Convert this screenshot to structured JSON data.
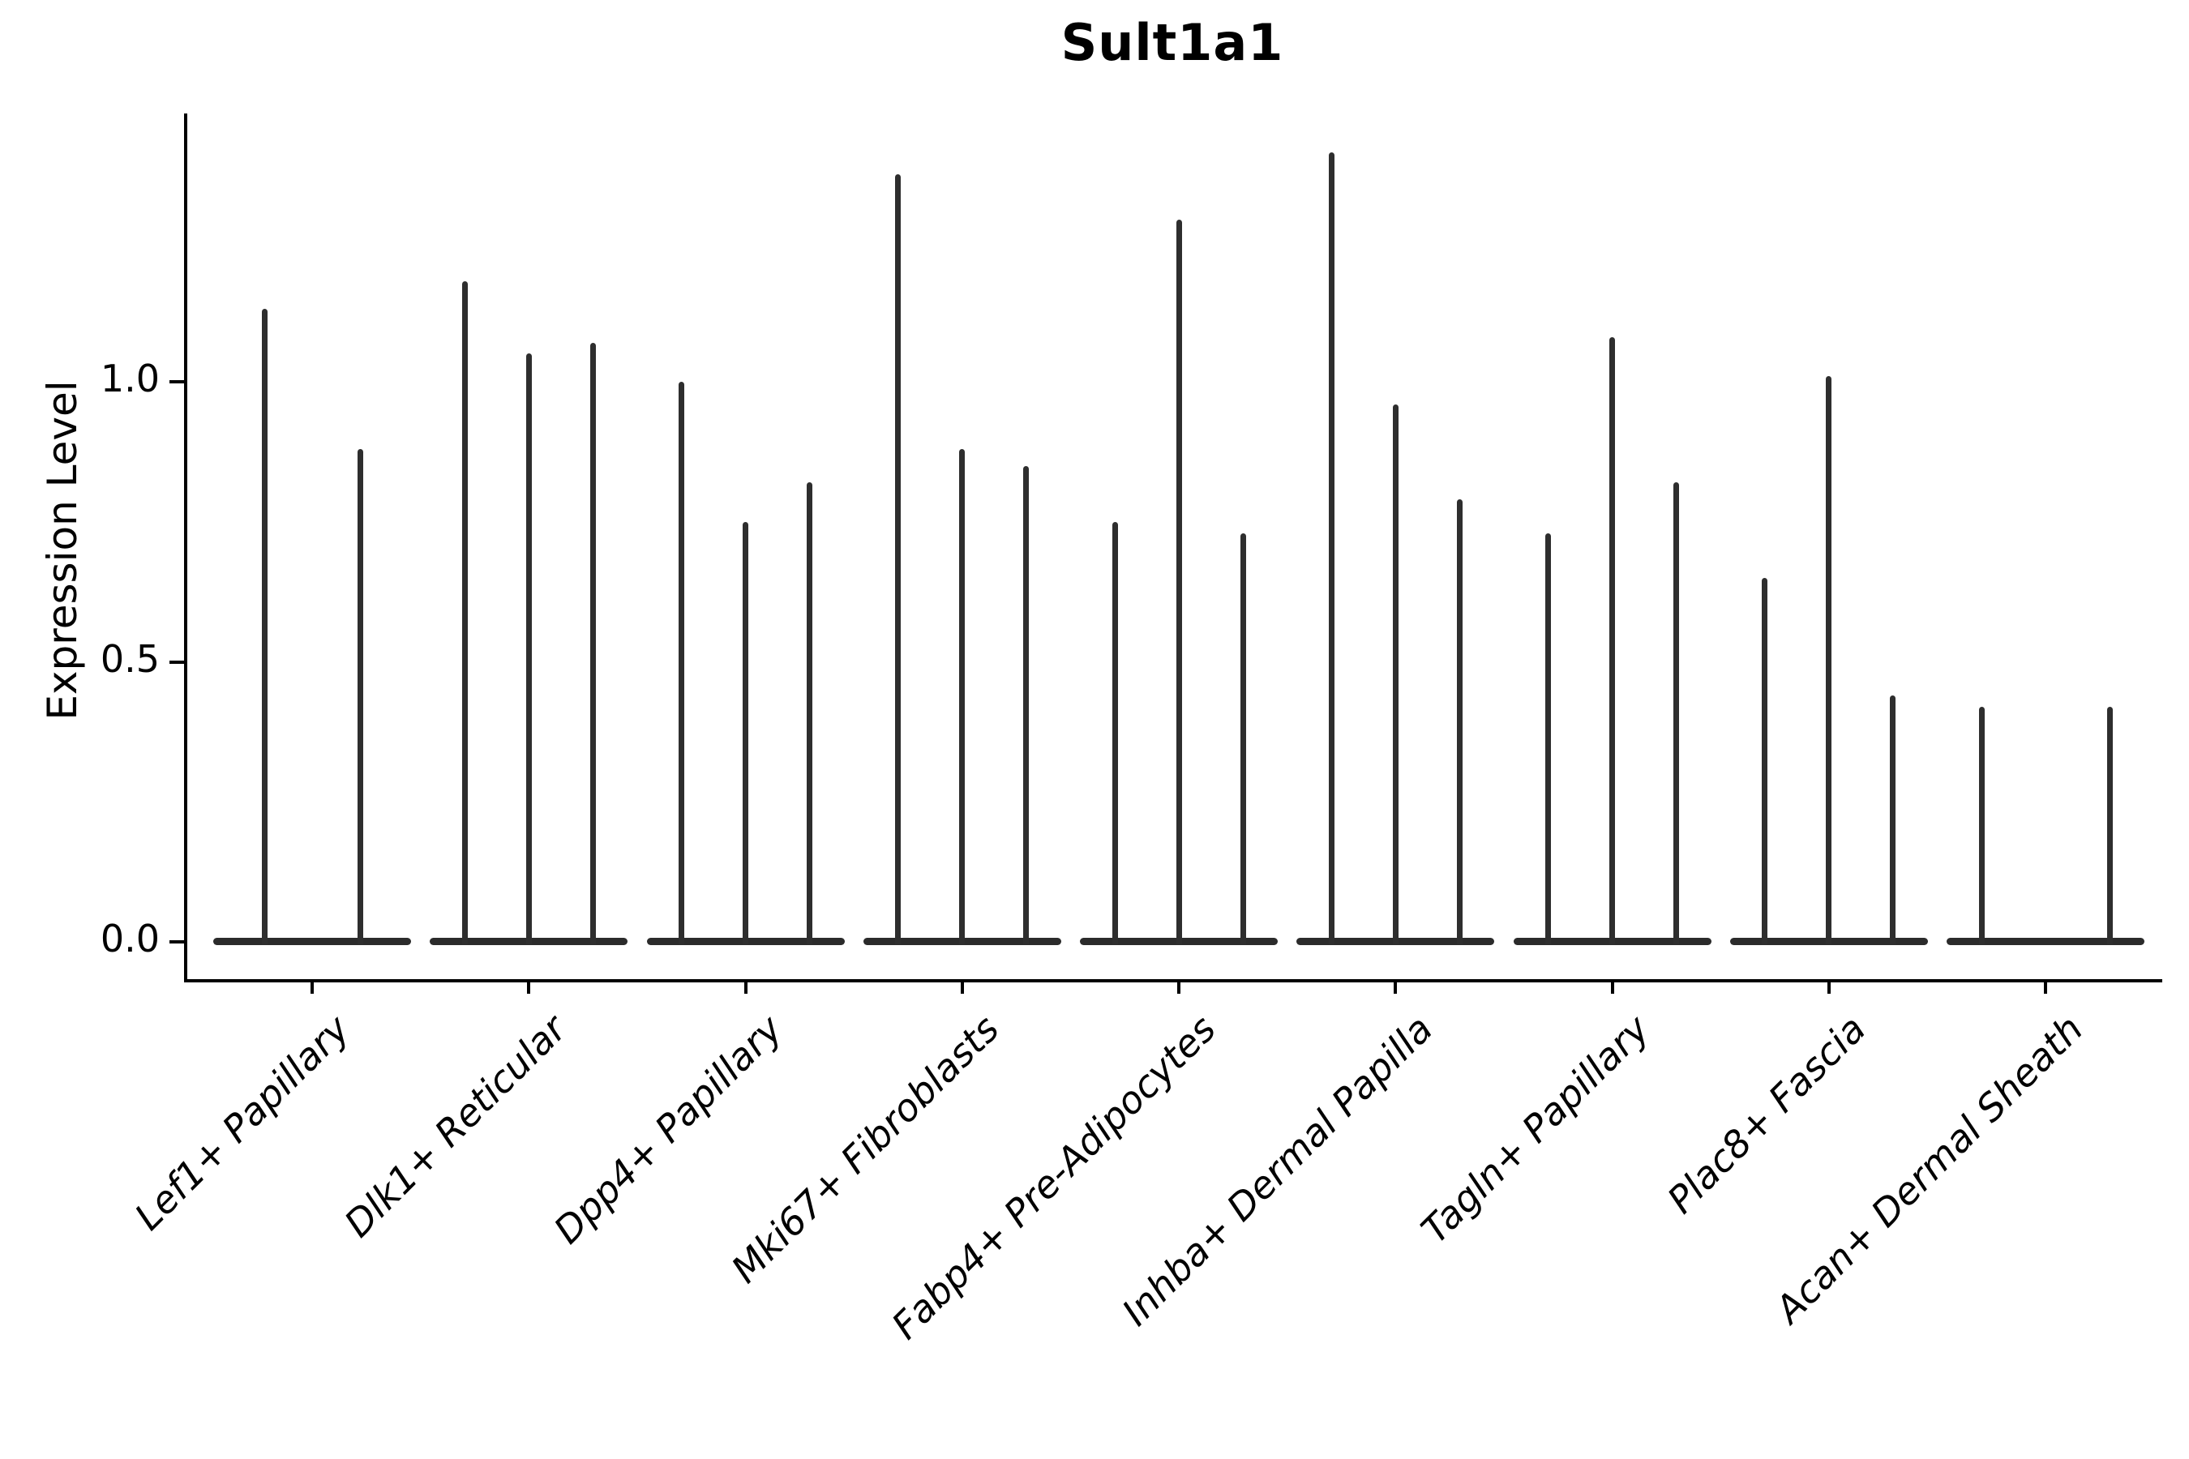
{
  "figure": {
    "title": "Sult1a1",
    "ylabel": "Expression Level",
    "background": "#ffffff",
    "axis_color": "#000000",
    "violin_color": "#2e2e2e"
  },
  "chart_data": {
    "type": "violin",
    "title": "Sult1a1",
    "xlabel": "",
    "ylabel": "Expression Level",
    "ylim": [
      0,
      1.48
    ],
    "grid": false,
    "legend_position": "none",
    "x_tick_rotation": 45,
    "x_tick_style": "italic",
    "yticks": [
      {
        "label": "0.0",
        "value": 0.0
      },
      {
        "label": "0.5",
        "value": 0.5
      },
      {
        "label": "1.0",
        "value": 1.0
      }
    ],
    "categories": [
      "Lef1+ Papillary",
      "Dlk1+ Reticular",
      "Dpp4+ Papillary",
      "Mki67+ Fibroblasts",
      "Fabp4+ Pre-Adipocytes",
      "Inhba+ Dermal Papilla",
      "Tagln+ Papillary",
      "Plac8+ Fascia",
      "Acan+ Dermal Sheath"
    ],
    "groups": [
      {
        "category": "Lef1+ Papillary",
        "violins": [
          {
            "offset": -59,
            "max": 1.13
          },
          {
            "offset": 59,
            "max": 0.88
          }
        ]
      },
      {
        "category": "Dlk1+ Reticular",
        "violins": [
          {
            "offset": -79,
            "max": 1.18
          },
          {
            "offset": 0,
            "max": 1.05
          },
          {
            "offset": 79,
            "max": 1.07
          }
        ]
      },
      {
        "category": "Dpp4+ Papillary",
        "violins": [
          {
            "offset": -79,
            "max": 1.0
          },
          {
            "offset": 0,
            "max": 0.75
          },
          {
            "offset": 79,
            "max": 0.82
          }
        ]
      },
      {
        "category": "Mki67+ Fibroblasts",
        "violins": [
          {
            "offset": -79,
            "max": 1.37
          },
          {
            "offset": 0,
            "max": 0.88
          },
          {
            "offset": 79,
            "max": 0.85
          }
        ]
      },
      {
        "category": "Fabp4+ Pre-Adipocytes",
        "violins": [
          {
            "offset": -79,
            "max": 0.75
          },
          {
            "offset": 0,
            "max": 1.29
          },
          {
            "offset": 79,
            "max": 0.73
          }
        ]
      },
      {
        "category": "Inhba+ Dermal Papilla",
        "violins": [
          {
            "offset": -79,
            "max": 1.41
          },
          {
            "offset": 0,
            "max": 0.96
          },
          {
            "offset": 79,
            "max": 0.79
          }
        ]
      },
      {
        "category": "Tagln+ Papillary",
        "violins": [
          {
            "offset": -79,
            "max": 0.73
          },
          {
            "offset": 0,
            "max": 1.08
          },
          {
            "offset": 79,
            "max": 0.82
          }
        ]
      },
      {
        "category": "Plac8+ Fascia",
        "violins": [
          {
            "offset": -79,
            "max": 0.65
          },
          {
            "offset": 0,
            "max": 1.01
          },
          {
            "offset": 79,
            "max": 0.44
          }
        ]
      },
      {
        "category": "Acan+ Dermal Sheath",
        "violins": [
          {
            "offset": -79,
            "max": 0.42
          },
          {
            "offset": 79,
            "max": 0.42
          }
        ]
      }
    ]
  }
}
